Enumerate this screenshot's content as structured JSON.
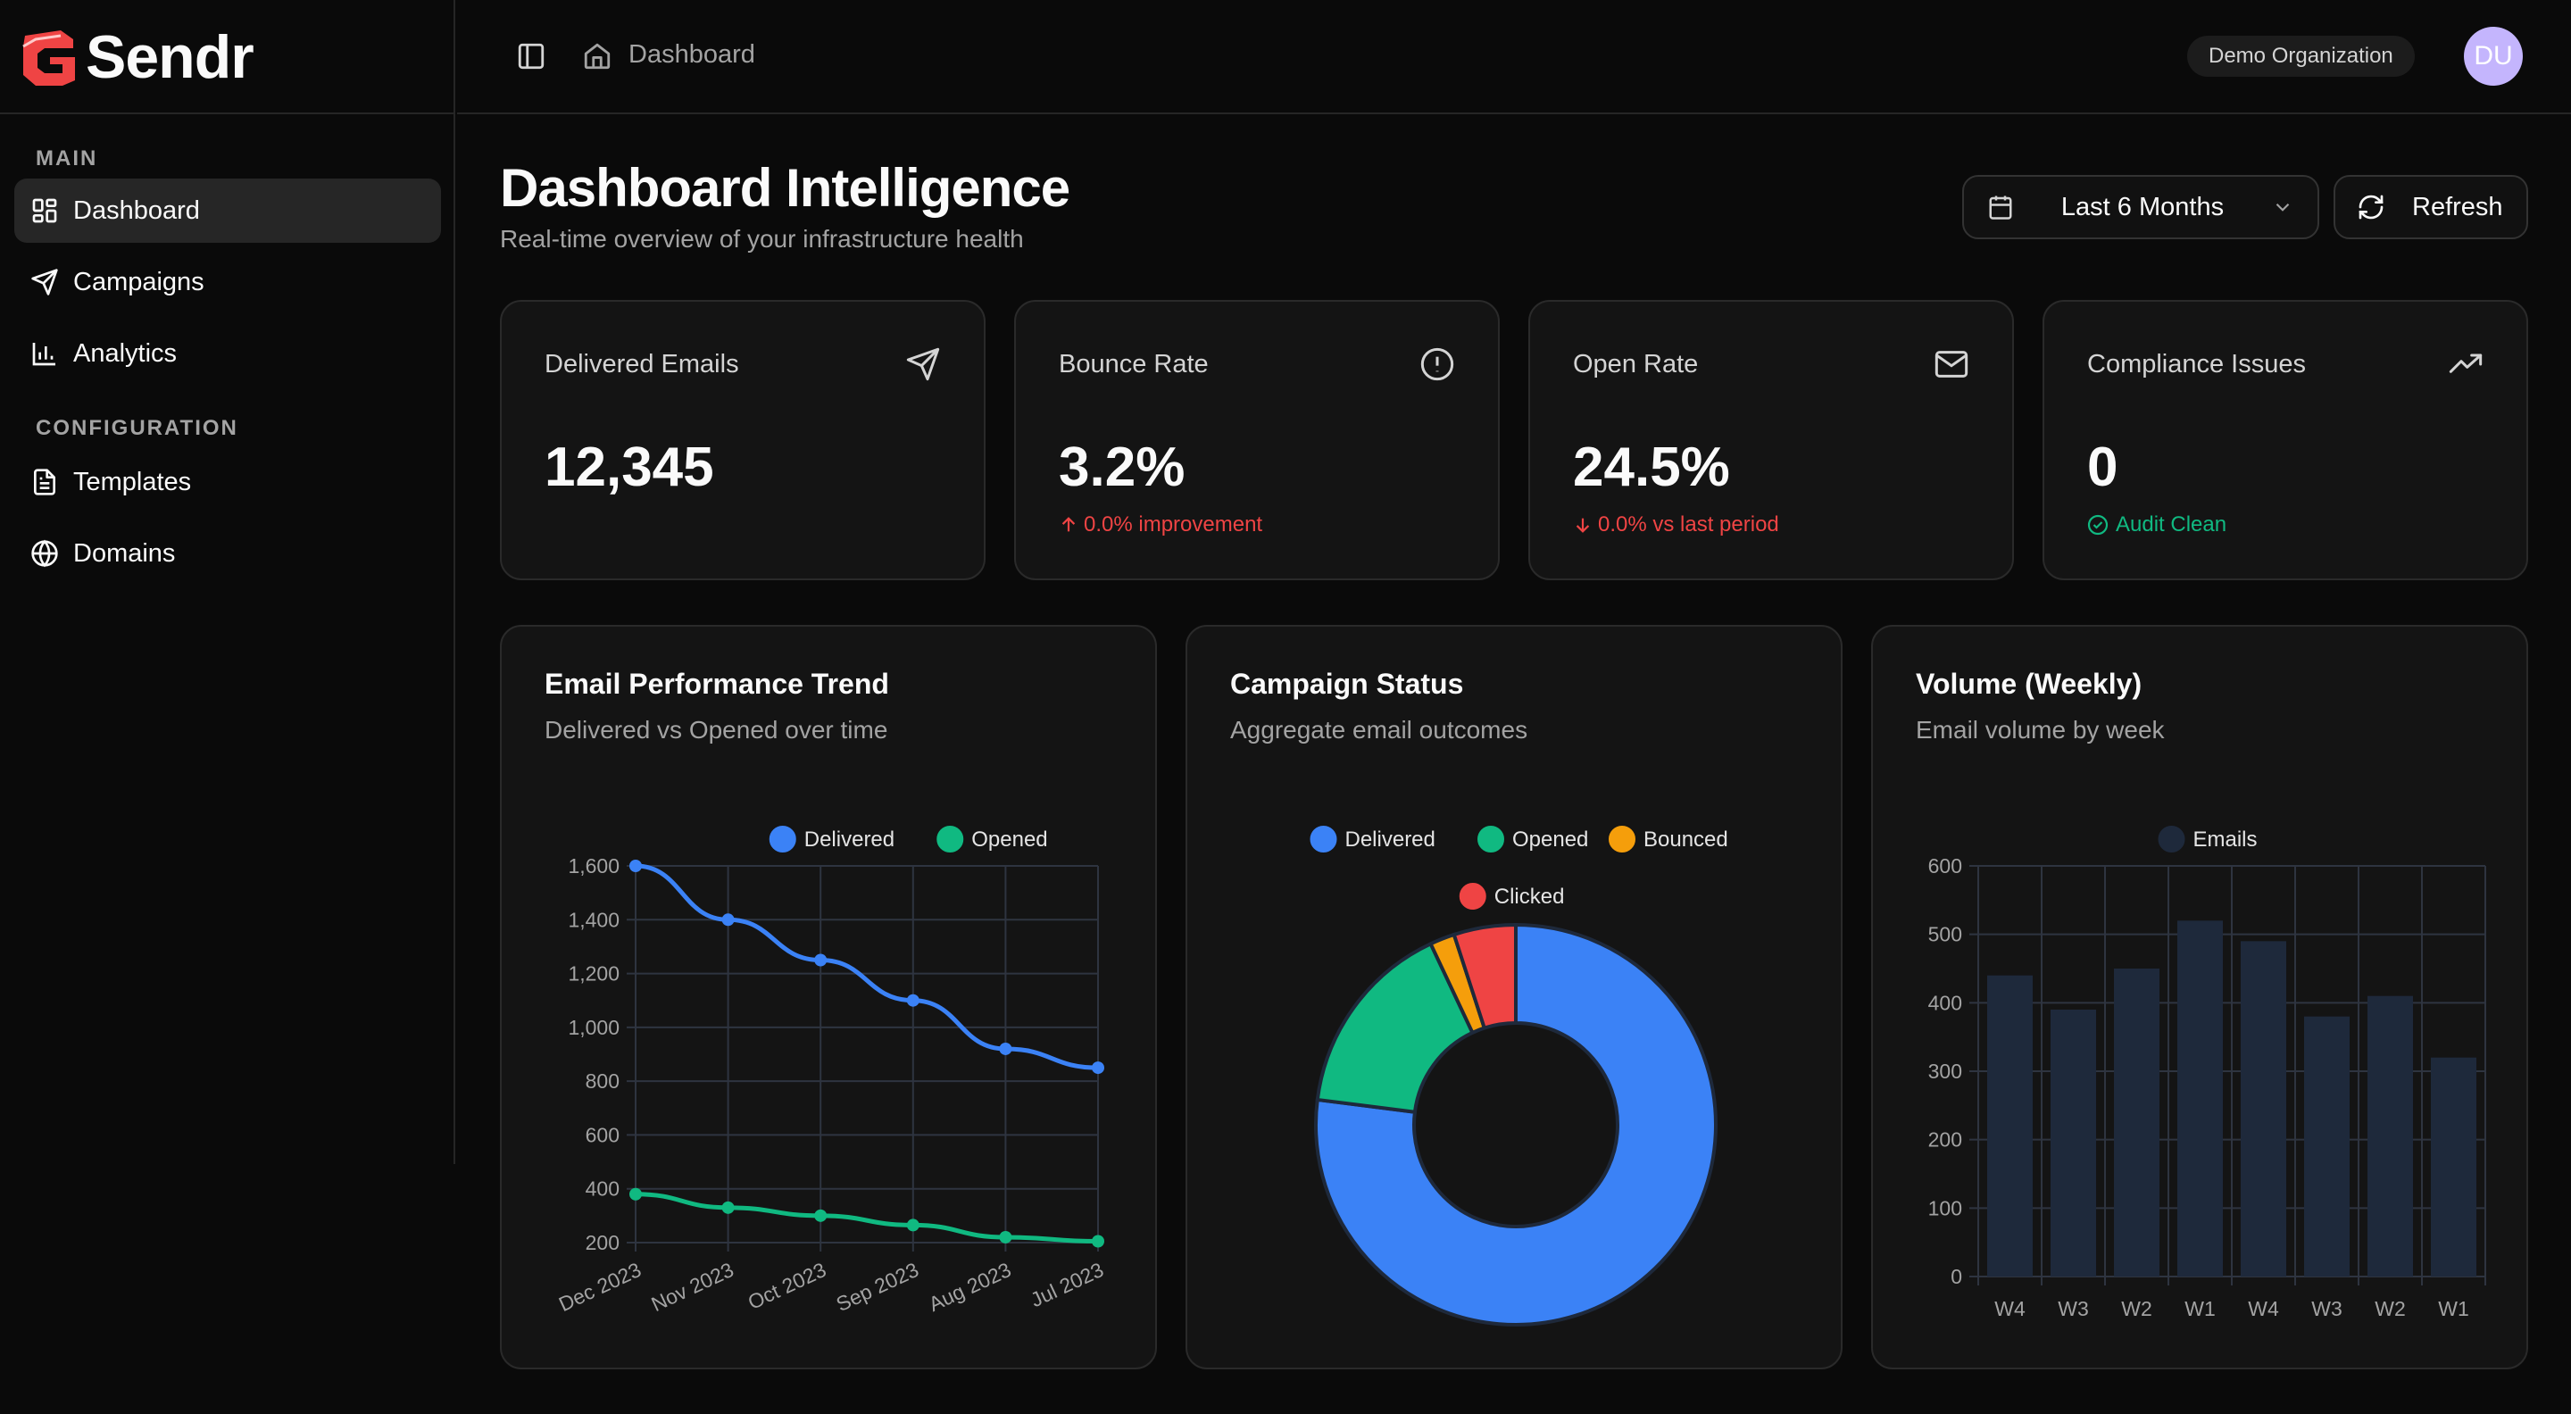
{
  "app": {
    "name": "Sendr"
  },
  "sidebar": {
    "sections": [
      {
        "label": "MAIN",
        "items": [
          {
            "label": "Dashboard",
            "active": true
          },
          {
            "label": "Campaigns"
          },
          {
            "label": "Analytics"
          }
        ]
      },
      {
        "label": "CONFIGURATION",
        "items": [
          {
            "label": "Templates"
          },
          {
            "label": "Domains"
          }
        ]
      }
    ]
  },
  "topbar": {
    "breadcrumb": "Dashboard",
    "organization": "Demo Organization",
    "avatar_initials": "DU"
  },
  "header": {
    "title": "Dashboard Intelligence",
    "subtitle": "Real-time overview of your infrastructure health",
    "date_range": "Last 6 Months",
    "refresh_label": "Refresh"
  },
  "stats": [
    {
      "title": "Delivered Emails",
      "value": "12,345",
      "sub": "",
      "icon": "send-icon"
    },
    {
      "title": "Bounce Rate",
      "value": "3.2%",
      "sub": "0.0% improvement",
      "trend": "up",
      "color": "#ef4444",
      "icon": "alert-circle-icon"
    },
    {
      "title": "Open Rate",
      "value": "24.5%",
      "sub": "0.0% vs last period",
      "trend": "down",
      "color": "#ef4444",
      "icon": "mail-icon"
    },
    {
      "title": "Compliance Issues",
      "value": "0",
      "sub": "Audit Clean",
      "trend": "check",
      "color": "#10b981",
      "icon": "trending-up-icon"
    }
  ],
  "cards": {
    "trend": {
      "title": "Email Performance Trend",
      "subtitle": "Delivered vs Opened over time"
    },
    "status": {
      "title": "Campaign Status",
      "subtitle": "Aggregate email outcomes"
    },
    "volume": {
      "title": "Volume (Weekly)",
      "subtitle": "Email volume by week"
    }
  },
  "chart_data": [
    {
      "type": "line",
      "categories": [
        "Dec 2023",
        "Nov 2023",
        "Oct 2023",
        "Sep 2023",
        "Aug 2023",
        "Jul 2023"
      ],
      "series": [
        {
          "name": "Delivered",
          "color": "#3b82f6",
          "values": [
            1600,
            1400,
            1250,
            1100,
            920,
            850
          ]
        },
        {
          "name": "Opened",
          "color": "#10b981",
          "values": [
            380,
            330,
            300,
            265,
            220,
            205
          ]
        }
      ],
      "yticks": [
        200,
        400,
        600,
        800,
        1000,
        1200,
        1400,
        1600
      ],
      "ylim": [
        200,
        1600
      ],
      "grid": true,
      "legend": "top"
    },
    {
      "type": "pie",
      "donut": true,
      "series": [
        {
          "name": "Delivered",
          "color": "#3b82f6",
          "value": 77
        },
        {
          "name": "Opened",
          "color": "#10b981",
          "value": 16
        },
        {
          "name": "Bounced",
          "color": "#f59e0b",
          "value": 2
        },
        {
          "name": "Clicked",
          "color": "#ef4444",
          "value": 5
        }
      ],
      "legend": "top"
    },
    {
      "type": "bar",
      "categories": [
        "W4",
        "W3",
        "W2",
        "W1",
        "W4",
        "W3",
        "W2",
        "W1"
      ],
      "series": [
        {
          "name": "Emails",
          "color": "#1e293b",
          "values": [
            440,
            390,
            450,
            520,
            490,
            380,
            410,
            320
          ]
        }
      ],
      "yticks": [
        0,
        100,
        200,
        300,
        400,
        500,
        600
      ],
      "ylim": [
        0,
        600
      ],
      "grid": true,
      "legend": "top"
    }
  ]
}
